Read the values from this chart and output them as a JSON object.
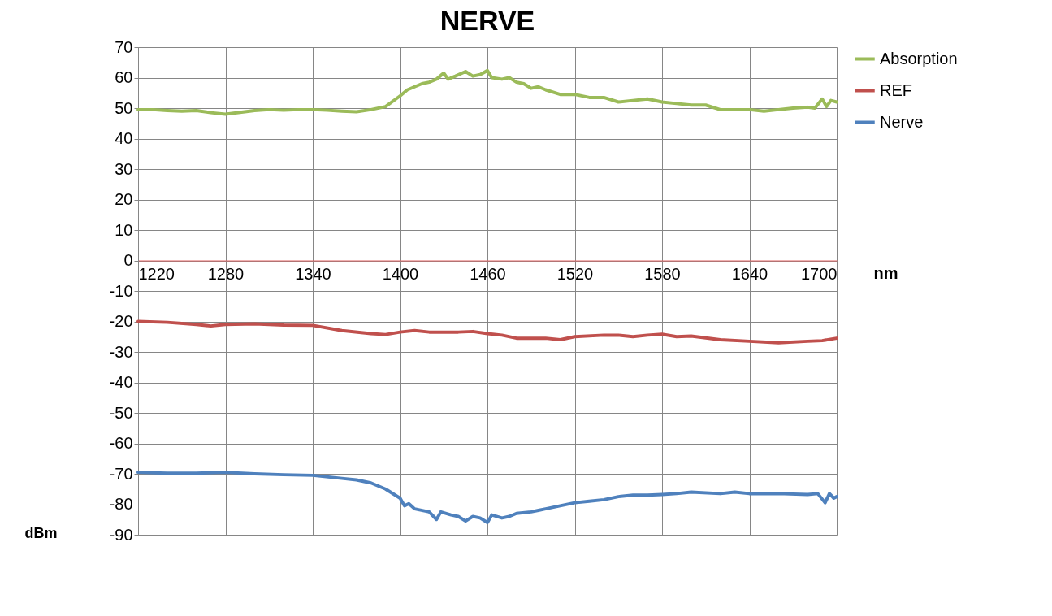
{
  "chart_data": {
    "type": "line",
    "title": "NERVE",
    "xlabel": "nm",
    "ylabel": "dBm",
    "xlim": [
      1220,
      1700
    ],
    "xticks": [
      1220,
      1280,
      1340,
      1400,
      1460,
      1520,
      1580,
      1640,
      1700
    ],
    "ylim": [
      -90,
      70
    ],
    "yticks": [
      -90,
      -80,
      -70,
      -60,
      -50,
      -40,
      -30,
      -20,
      -10,
      0,
      10,
      20,
      30,
      40,
      50,
      60,
      70
    ],
    "grid": true,
    "legend": "right",
    "series": [
      {
        "name": "Absorption",
        "color": "#9bbb59",
        "x": [
          1220,
          1230,
          1240,
          1250,
          1260,
          1270,
          1280,
          1290,
          1300,
          1310,
          1320,
          1330,
          1340,
          1350,
          1360,
          1370,
          1380,
          1390,
          1400,
          1405,
          1410,
          1415,
          1420,
          1425,
          1430,
          1433,
          1438,
          1445,
          1450,
          1455,
          1460,
          1463,
          1470,
          1475,
          1480,
          1485,
          1490,
          1495,
          1500,
          1510,
          1520,
          1530,
          1540,
          1550,
          1560,
          1570,
          1580,
          1590,
          1600,
          1610,
          1620,
          1640,
          1650,
          1660,
          1670,
          1680,
          1685,
          1690,
          1693,
          1696,
          1700
        ],
        "values": [
          49.5,
          49.5,
          49.2,
          49,
          49.2,
          48.5,
          48,
          48.6,
          49.2,
          49.5,
          49.3,
          49.5,
          49.5,
          49.3,
          49,
          48.8,
          49.5,
          50.5,
          54,
          56,
          57,
          58,
          58.5,
          59.5,
          61.5,
          59.5,
          60.5,
          62,
          60.5,
          61,
          62.3,
          60,
          59.5,
          60,
          58.5,
          58,
          56.5,
          57,
          56,
          54.5,
          54.5,
          53.5,
          53.5,
          52,
          52.5,
          53,
          52,
          51.5,
          51,
          51,
          49.5,
          49.5,
          49,
          49.5,
          50,
          50.3,
          50,
          53,
          50.5,
          52.5,
          52
        ]
      },
      {
        "name": "REF",
        "color": "#c0504d",
        "x": [
          1220,
          1240,
          1260,
          1270,
          1280,
          1300,
          1320,
          1340,
          1360,
          1380,
          1390,
          1400,
          1410,
          1420,
          1440,
          1450,
          1460,
          1470,
          1480,
          1490,
          1500,
          1510,
          1520,
          1540,
          1550,
          1560,
          1570,
          1580,
          1590,
          1600,
          1620,
          1640,
          1660,
          1680,
          1690,
          1700
        ],
        "values": [
          -20,
          -20.3,
          -21,
          -21.5,
          -21,
          -20.8,
          -21.2,
          -21.3,
          -23,
          -24,
          -24.3,
          -23.5,
          -23,
          -23.5,
          -23.5,
          -23.3,
          -24,
          -24.5,
          -25.5,
          -25.5,
          -25.5,
          -26,
          -25,
          -24.5,
          -24.5,
          -25,
          -24.5,
          -24.2,
          -25,
          -24.8,
          -26,
          -26.5,
          -27,
          -26.5,
          -26.3,
          -25.5
        ]
      },
      {
        "name": "Nerve",
        "color": "#4f81bd",
        "x": [
          1220,
          1240,
          1260,
          1280,
          1300,
          1320,
          1340,
          1360,
          1370,
          1380,
          1390,
          1400,
          1403,
          1406,
          1410,
          1420,
          1425,
          1428,
          1435,
          1440,
          1445,
          1450,
          1455,
          1460,
          1463,
          1470,
          1475,
          1480,
          1490,
          1495,
          1500,
          1510,
          1520,
          1530,
          1540,
          1550,
          1560,
          1570,
          1580,
          1590,
          1600,
          1620,
          1630,
          1640,
          1660,
          1680,
          1687,
          1692,
          1695,
          1698,
          1700
        ],
        "values": [
          -69.5,
          -69.8,
          -69.8,
          -69.5,
          -70,
          -70.3,
          -70.5,
          -71.5,
          -72,
          -73,
          -75,
          -78,
          -80.5,
          -79.8,
          -81.5,
          -82.5,
          -85,
          -82.5,
          -83.5,
          -84,
          -85.5,
          -84,
          -84.5,
          -86,
          -83.5,
          -84.5,
          -84,
          -83,
          -82.5,
          -82,
          -81.5,
          -80.5,
          -79.5,
          -79,
          -78.5,
          -77.5,
          -77,
          -77,
          -76.8,
          -76.5,
          -76,
          -76.5,
          -76,
          -76.5,
          -76.5,
          -76.8,
          -76.5,
          -79.5,
          -76.5,
          -78,
          -77.5
        ]
      }
    ]
  }
}
